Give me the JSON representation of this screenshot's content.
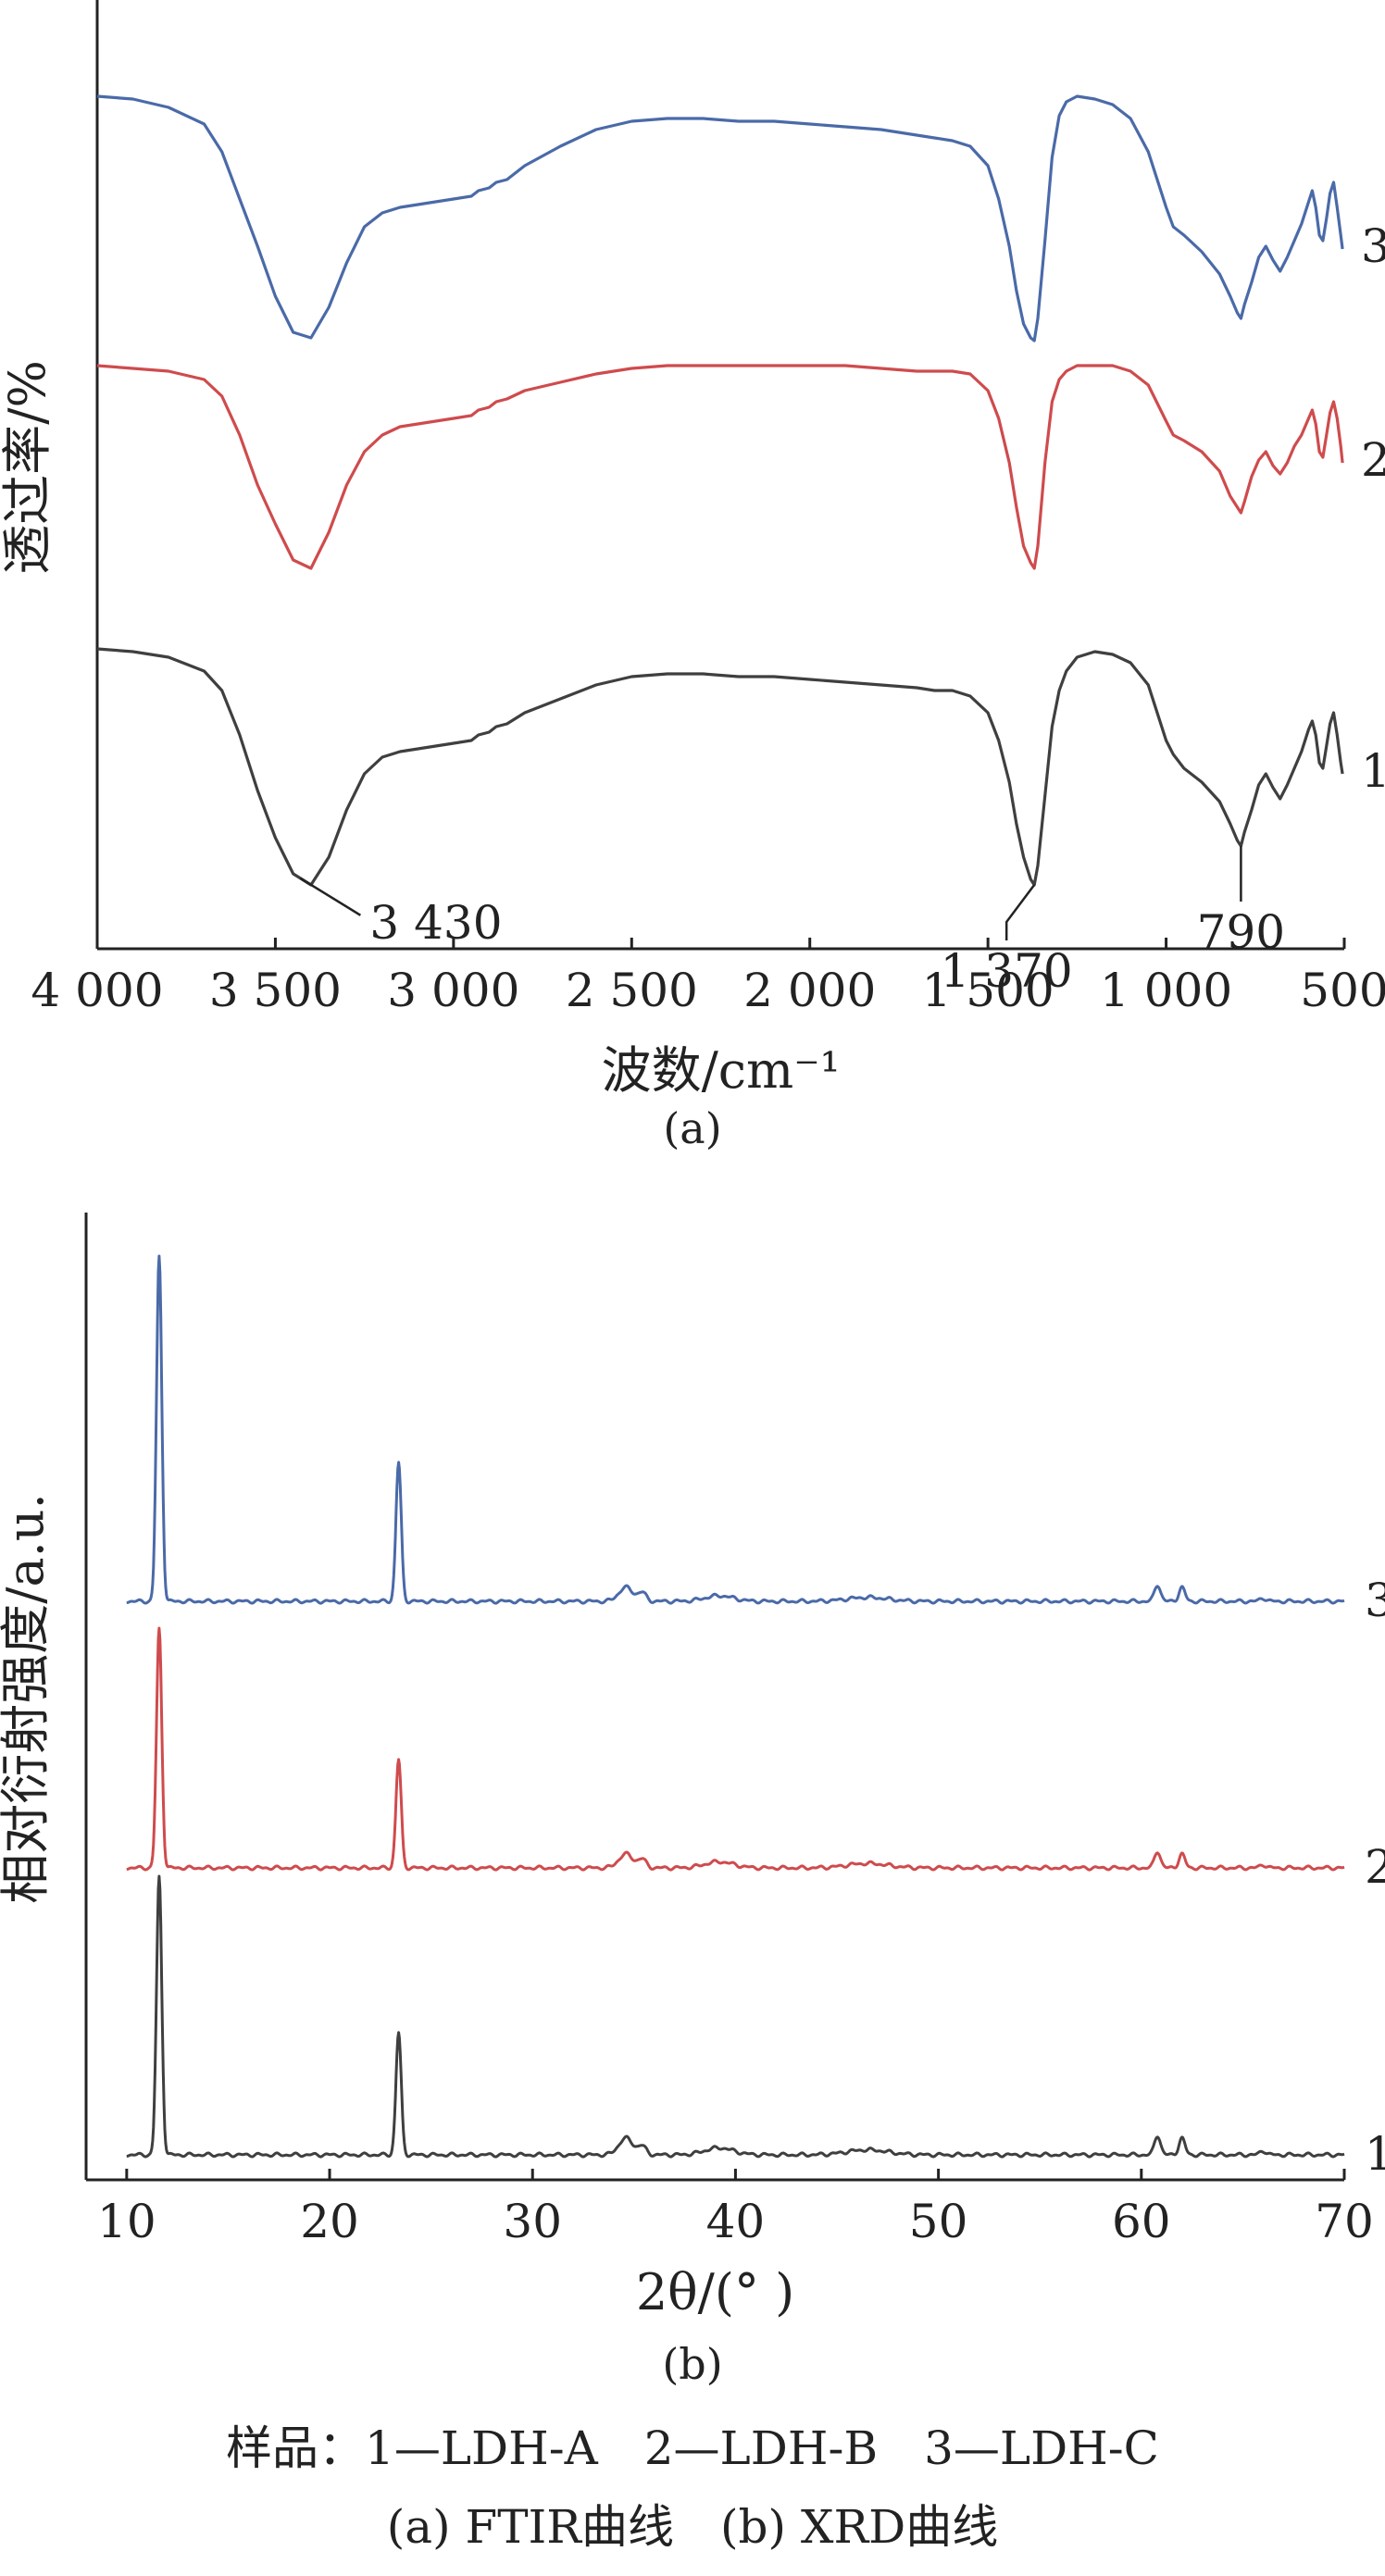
{
  "chart_data": [
    {
      "type": "line",
      "panel_label": "(a)",
      "xlabel": "波数/cm⁻¹",
      "ylabel": "透过率/%",
      "xlim": [
        4000,
        500
      ],
      "x_reversed": true,
      "xticks": [
        "4 000",
        "3 500",
        "3 000",
        "2 500",
        "2 000",
        "1 500",
        "1 000",
        "500"
      ],
      "grid": false,
      "series": [
        {
          "name": "1",
          "color": "#3f3f3f",
          "offset": 0,
          "x": [
            4000,
            3900,
            3800,
            3700,
            3650,
            3600,
            3550,
            3500,
            3450,
            3400,
            3350,
            3300,
            3250,
            3200,
            3150,
            3100,
            3050,
            3000,
            2950,
            2930,
            2900,
            2880,
            2850,
            2800,
            2700,
            2600,
            2500,
            2400,
            2300,
            2200,
            2100,
            2000,
            1900,
            1800,
            1700,
            1650,
            1600,
            1550,
            1500,
            1470,
            1440,
            1420,
            1400,
            1380,
            1370,
            1360,
            1340,
            1320,
            1300,
            1280,
            1250,
            1200,
            1150,
            1100,
            1050,
            1000,
            980,
            950,
            900,
            850,
            820,
            800,
            790,
            780,
            760,
            740,
            720,
            700,
            680,
            660,
            640,
            620,
            600,
            590,
            580,
            570,
            560,
            550,
            540,
            530,
            520,
            510,
            505
          ],
          "y": [
            0.93,
            0.92,
            0.9,
            0.85,
            0.78,
            0.62,
            0.42,
            0.25,
            0.12,
            0.08,
            0.18,
            0.35,
            0.48,
            0.54,
            0.56,
            0.57,
            0.58,
            0.59,
            0.6,
            0.62,
            0.63,
            0.65,
            0.66,
            0.7,
            0.75,
            0.8,
            0.83,
            0.84,
            0.84,
            0.83,
            0.83,
            0.82,
            0.81,
            0.8,
            0.79,
            0.78,
            0.78,
            0.76,
            0.7,
            0.6,
            0.45,
            0.3,
            0.18,
            0.1,
            0.08,
            0.15,
            0.4,
            0.65,
            0.78,
            0.85,
            0.9,
            0.92,
            0.91,
            0.88,
            0.8,
            0.6,
            0.55,
            0.5,
            0.45,
            0.38,
            0.3,
            0.24,
            0.22,
            0.27,
            0.35,
            0.44,
            0.48,
            0.43,
            0.39,
            0.44,
            0.5,
            0.56,
            0.64,
            0.67,
            0.62,
            0.52,
            0.5,
            0.58,
            0.66,
            0.7,
            0.62,
            0.52,
            0.48
          ]
        },
        {
          "name": "2",
          "color": "#cf4b4d",
          "offset": 1,
          "x": [
            4000,
            3900,
            3800,
            3700,
            3650,
            3600,
            3550,
            3500,
            3450,
            3400,
            3350,
            3300,
            3250,
            3200,
            3150,
            3100,
            3050,
            3000,
            2950,
            2930,
            2900,
            2880,
            2850,
            2800,
            2700,
            2600,
            2500,
            2400,
            2300,
            2200,
            2100,
            2000,
            1900,
            1800,
            1700,
            1650,
            1600,
            1550,
            1500,
            1470,
            1440,
            1420,
            1400,
            1380,
            1370,
            1360,
            1340,
            1320,
            1300,
            1280,
            1250,
            1200,
            1150,
            1100,
            1050,
            1000,
            980,
            950,
            900,
            850,
            820,
            800,
            790,
            780,
            760,
            740,
            720,
            700,
            680,
            660,
            640,
            620,
            600,
            590,
            580,
            570,
            560,
            550,
            540,
            530,
            520,
            510,
            505
          ],
          "y": [
            0.95,
            0.94,
            0.93,
            0.9,
            0.84,
            0.7,
            0.52,
            0.38,
            0.25,
            0.22,
            0.35,
            0.52,
            0.64,
            0.7,
            0.73,
            0.74,
            0.75,
            0.76,
            0.77,
            0.79,
            0.8,
            0.82,
            0.83,
            0.86,
            0.89,
            0.92,
            0.94,
            0.95,
            0.95,
            0.95,
            0.95,
            0.95,
            0.95,
            0.94,
            0.93,
            0.93,
            0.93,
            0.92,
            0.86,
            0.76,
            0.6,
            0.44,
            0.3,
            0.24,
            0.22,
            0.3,
            0.6,
            0.82,
            0.9,
            0.93,
            0.95,
            0.95,
            0.95,
            0.93,
            0.88,
            0.75,
            0.7,
            0.68,
            0.64,
            0.57,
            0.48,
            0.44,
            0.42,
            0.46,
            0.55,
            0.61,
            0.64,
            0.59,
            0.56,
            0.6,
            0.66,
            0.7,
            0.76,
            0.79,
            0.74,
            0.64,
            0.62,
            0.7,
            0.78,
            0.82,
            0.76,
            0.66,
            0.6
          ]
        },
        {
          "name": "3",
          "color": "#4a6aa8",
          "offset": 2,
          "x": [
            4000,
            3900,
            3800,
            3700,
            3650,
            3600,
            3550,
            3500,
            3450,
            3400,
            3350,
            3300,
            3250,
            3200,
            3150,
            3100,
            3050,
            3000,
            2950,
            2930,
            2900,
            2880,
            2850,
            2800,
            2700,
            2600,
            2500,
            2400,
            2300,
            2200,
            2100,
            2000,
            1900,
            1800,
            1700,
            1650,
            1600,
            1550,
            1500,
            1470,
            1440,
            1420,
            1400,
            1380,
            1370,
            1360,
            1340,
            1320,
            1300,
            1280,
            1250,
            1200,
            1150,
            1100,
            1050,
            1000,
            980,
            950,
            900,
            850,
            820,
            800,
            790,
            780,
            760,
            740,
            720,
            700,
            680,
            660,
            640,
            620,
            600,
            590,
            580,
            570,
            560,
            550,
            540,
            530,
            520,
            510,
            505
          ],
          "y": [
            0.92,
            0.91,
            0.88,
            0.82,
            0.72,
            0.55,
            0.38,
            0.2,
            0.07,
            0.05,
            0.16,
            0.32,
            0.45,
            0.5,
            0.52,
            0.53,
            0.54,
            0.55,
            0.56,
            0.58,
            0.59,
            0.61,
            0.62,
            0.67,
            0.74,
            0.8,
            0.83,
            0.84,
            0.84,
            0.83,
            0.83,
            0.82,
            0.81,
            0.8,
            0.78,
            0.77,
            0.76,
            0.74,
            0.67,
            0.55,
            0.38,
            0.22,
            0.1,
            0.05,
            0.04,
            0.12,
            0.4,
            0.7,
            0.85,
            0.9,
            0.92,
            0.91,
            0.89,
            0.84,
            0.72,
            0.52,
            0.45,
            0.42,
            0.36,
            0.28,
            0.2,
            0.14,
            0.12,
            0.17,
            0.25,
            0.34,
            0.38,
            0.33,
            0.29,
            0.34,
            0.4,
            0.46,
            0.54,
            0.58,
            0.52,
            0.42,
            0.4,
            0.48,
            0.57,
            0.61,
            0.52,
            0.42,
            0.37
          ]
        }
      ],
      "annotations": [
        {
          "text": "3 430",
          "x": 3430,
          "series": "1"
        },
        {
          "text": "1 370",
          "x": 1370,
          "series": "1"
        },
        {
          "text": "790",
          "x": 790,
          "series": "1"
        }
      ]
    },
    {
      "type": "line",
      "panel_label": "(b)",
      "xlabel": "2θ/(° )",
      "ylabel": "相对衍射强度/a.u.",
      "xlim": [
        8,
        70
      ],
      "xticks": [
        10,
        20,
        30,
        40,
        50,
        60,
        70
      ],
      "grid": false,
      "peaks_2theta": [
        11.6,
        23.4,
        34.6,
        35.4,
        39.2,
        46.5,
        60.8,
        62.0,
        66.0
      ],
      "series": [
        {
          "name": "1",
          "color": "#3f3f3f",
          "offset": 0,
          "peak_heights": [
            1.0,
            0.44,
            0.06,
            0.03,
            0.025,
            0.018,
            0.07,
            0.06,
            0.015
          ]
        },
        {
          "name": "2",
          "color": "#cf4b4d",
          "offset": 1,
          "peak_heights": [
            0.86,
            0.39,
            0.05,
            0.03,
            0.022,
            0.016,
            0.06,
            0.05,
            0.012
          ]
        },
        {
          "name": "3",
          "color": "#4a6aa8",
          "offset": 2,
          "peak_heights": [
            1.24,
            0.5,
            0.05,
            0.03,
            0.02,
            0.014,
            0.06,
            0.05,
            0.012
          ]
        }
      ]
    }
  ],
  "caption_samples": "样品：1—LDH-A　2—LDH-B　3—LDH-C",
  "caption_titles": "(a) FTIR曲线　(b) XRD曲线"
}
